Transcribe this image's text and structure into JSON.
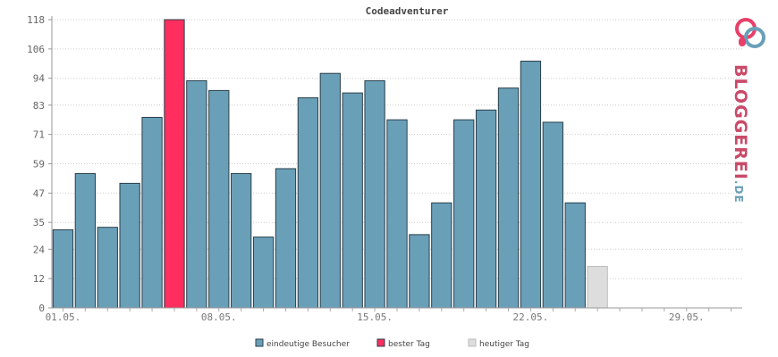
{
  "chart_data": {
    "type": "bar",
    "title": "Codeadventurer",
    "ylim": [
      0,
      118
    ],
    "yticks": [
      0,
      12,
      24,
      35,
      47,
      59,
      71,
      83,
      94,
      106,
      118
    ],
    "xtick_labels": [
      "01.05.",
      "08.05.",
      "15.05.",
      "22.05.",
      "29.05."
    ],
    "xtick_positions": [
      1,
      8,
      15,
      22,
      29
    ],
    "days": 31,
    "grid": true,
    "legend_position": "bottom",
    "series": [
      {
        "name": "eindeutige Besucher",
        "color": "#6a9fb8",
        "values": [
          {
            "day": 1,
            "value": 32
          },
          {
            "day": 2,
            "value": 55
          },
          {
            "day": 3,
            "value": 33
          },
          {
            "day": 4,
            "value": 51
          },
          {
            "day": 5,
            "value": 78
          },
          {
            "day": 7,
            "value": 93
          },
          {
            "day": 8,
            "value": 89
          },
          {
            "day": 9,
            "value": 55
          },
          {
            "day": 10,
            "value": 29
          },
          {
            "day": 11,
            "value": 57
          },
          {
            "day": 12,
            "value": 86
          },
          {
            "day": 13,
            "value": 96
          },
          {
            "day": 14,
            "value": 88
          },
          {
            "day": 15,
            "value": 93
          },
          {
            "day": 16,
            "value": 77
          },
          {
            "day": 17,
            "value": 30
          },
          {
            "day": 18,
            "value": 43
          },
          {
            "day": 19,
            "value": 77
          },
          {
            "day": 20,
            "value": 81
          },
          {
            "day": 21,
            "value": 90
          },
          {
            "day": 22,
            "value": 101
          },
          {
            "day": 23,
            "value": 76
          },
          {
            "day": 24,
            "value": 43
          }
        ]
      },
      {
        "name": "bester Tag",
        "color": "#ff2e5e",
        "values": [
          {
            "day": 6,
            "value": 118
          }
        ]
      },
      {
        "name": "heutiger Tag",
        "color": "#dddddd",
        "values": [
          {
            "day": 25,
            "value": 17
          }
        ]
      }
    ]
  },
  "logo": {
    "brand": "BLOGGEREI",
    "tld": ".DE"
  }
}
